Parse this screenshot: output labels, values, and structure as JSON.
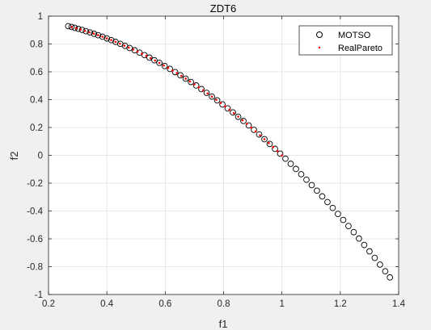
{
  "chart_data": {
    "type": "scatter",
    "title": "ZDT6",
    "xlabel": "f1",
    "ylabel": "f2",
    "xlim": [
      0.2,
      1.4
    ],
    "ylim": [
      -1,
      1
    ],
    "xticks": [
      0.2,
      0.4,
      0.6,
      0.8,
      1,
      1.2,
      1.4
    ],
    "xtick_labels": [
      "0.2",
      "0.4",
      "0.6",
      "0.8",
      "1",
      "1.2",
      "1.4"
    ],
    "yticks": [
      -1,
      -0.8,
      -0.6,
      -0.4,
      -0.2,
      0,
      0.2,
      0.4,
      0.6,
      0.8,
      1
    ],
    "ytick_labels": [
      "-1",
      "-0.8",
      "-0.6",
      "-0.4",
      "-0.2",
      "0",
      "0.2",
      "0.4",
      "0.6",
      "0.8",
      "1"
    ],
    "grid": true,
    "legend_position": "top-right",
    "series": [
      {
        "name": "MOTSO",
        "marker": "circle",
        "color": "#000000",
        "x": [
          0.2675,
          0.279,
          0.29,
          0.302,
          0.315,
          0.328,
          0.342,
          0.356,
          0.37,
          0.385,
          0.4,
          0.415,
          0.43,
          0.446,
          0.462,
          0.478,
          0.495,
          0.512,
          0.529,
          0.546,
          0.563,
          0.58,
          0.598,
          0.616,
          0.634,
          0.652,
          0.67,
          0.688,
          0.706,
          0.724,
          0.742,
          0.76,
          0.778,
          0.796,
          0.814,
          0.832,
          0.85,
          0.868,
          0.886,
          0.904,
          0.922,
          0.94,
          0.958,
          0.976,
          0.994,
          1.012,
          1.03,
          1.048,
          1.066,
          1.084,
          1.102,
          1.12,
          1.138,
          1.156,
          1.174,
          1.192,
          1.21,
          1.228,
          1.246,
          1.264,
          1.282,
          1.3,
          1.318,
          1.336,
          1.354,
          1.37
        ],
        "y": [
          0.928,
          0.922,
          0.916,
          0.909,
          0.901,
          0.892,
          0.883,
          0.873,
          0.863,
          0.852,
          0.84,
          0.828,
          0.815,
          0.801,
          0.787,
          0.771,
          0.755,
          0.738,
          0.72,
          0.702,
          0.683,
          0.664,
          0.642,
          0.621,
          0.598,
          0.575,
          0.551,
          0.527,
          0.502,
          0.476,
          0.449,
          0.422,
          0.395,
          0.366,
          0.337,
          0.308,
          0.277,
          0.247,
          0.215,
          0.183,
          0.15,
          0.116,
          0.082,
          0.047,
          0.012,
          -0.024,
          -0.061,
          -0.098,
          -0.136,
          -0.175,
          -0.214,
          -0.254,
          -0.295,
          -0.336,
          -0.378,
          -0.421,
          -0.464,
          -0.508,
          -0.552,
          -0.598,
          -0.644,
          -0.69,
          -0.737,
          -0.785,
          -0.833,
          -0.877
        ]
      },
      {
        "name": "RealPareto",
        "marker": "dot",
        "color": "#ff0000",
        "x": [
          0.28,
          0.295,
          0.31,
          0.325,
          0.34,
          0.355,
          0.37,
          0.385,
          0.4,
          0.415,
          0.43,
          0.445,
          0.46,
          0.475,
          0.49,
          0.505,
          0.52,
          0.535,
          0.55,
          0.565,
          0.58,
          0.595,
          0.61,
          0.625,
          0.64,
          0.655,
          0.67,
          0.685,
          0.7,
          0.715,
          0.73,
          0.745,
          0.76,
          0.775,
          0.79,
          0.805,
          0.82,
          0.835,
          0.85,
          0.865,
          0.88,
          0.895,
          0.91,
          0.925,
          0.94,
          0.955,
          0.97,
          0.985,
          1.0
        ],
        "y": [
          0.922,
          0.913,
          0.904,
          0.894,
          0.884,
          0.874,
          0.863,
          0.852,
          0.84,
          0.828,
          0.815,
          0.802,
          0.788,
          0.774,
          0.76,
          0.745,
          0.73,
          0.714,
          0.698,
          0.681,
          0.664,
          0.646,
          0.628,
          0.609,
          0.59,
          0.571,
          0.551,
          0.531,
          0.51,
          0.489,
          0.467,
          0.445,
          0.422,
          0.399,
          0.376,
          0.352,
          0.328,
          0.303,
          0.278,
          0.252,
          0.226,
          0.199,
          0.172,
          0.144,
          0.116,
          0.088,
          0.059,
          0.03,
          0.0
        ]
      }
    ]
  }
}
